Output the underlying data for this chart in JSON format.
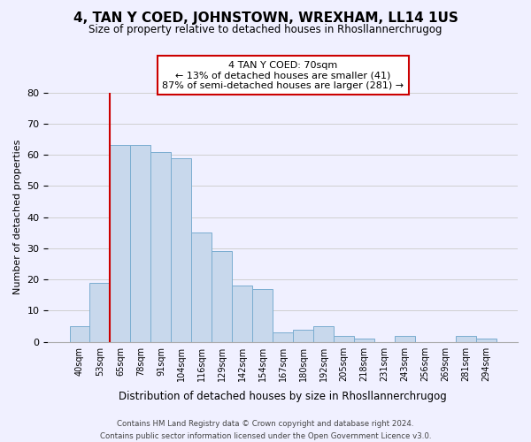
{
  "title": "4, TAN Y COED, JOHNSTOWN, WREXHAM, LL14 1US",
  "subtitle": "Size of property relative to detached houses in Rhosllannerchrugog",
  "xlabel": "Distribution of detached houses by size in Rhosllannerchrugog",
  "ylabel": "Number of detached properties",
  "bar_color": "#c8d8ec",
  "bar_edge_color": "#7aadd0",
  "vline_color": "#cc0000",
  "vline_x_index": 2,
  "categories": [
    "40sqm",
    "53sqm",
    "65sqm",
    "78sqm",
    "91sqm",
    "104sqm",
    "116sqm",
    "129sqm",
    "142sqm",
    "154sqm",
    "167sqm",
    "180sqm",
    "192sqm",
    "205sqm",
    "218sqm",
    "231sqm",
    "243sqm",
    "256sqm",
    "269sqm",
    "281sqm",
    "294sqm"
  ],
  "values": [
    5,
    19,
    63,
    63,
    61,
    59,
    35,
    29,
    18,
    17,
    3,
    4,
    5,
    2,
    1,
    0,
    2,
    0,
    0,
    2,
    1
  ],
  "ylim": [
    0,
    80
  ],
  "yticks": [
    0,
    10,
    20,
    30,
    40,
    50,
    60,
    70,
    80
  ],
  "annotation_line1": "4 TAN Y COED: 70sqm",
  "annotation_line2": "← 13% of detached houses are smaller (41)",
  "annotation_line3": "87% of semi-detached houses are larger (281) →",
  "footer_line1": "Contains HM Land Registry data © Crown copyright and database right 2024.",
  "footer_line2": "Contains public sector information licensed under the Open Government Licence v3.0.",
  "background_color": "#f0f0ff",
  "grid_color": "#d0d0d0",
  "annotation_box_color": "#cc0000"
}
